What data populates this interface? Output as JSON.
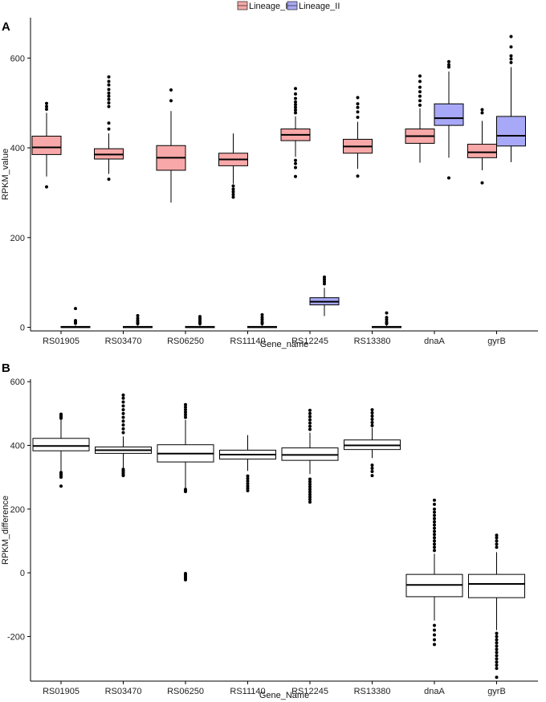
{
  "chart_data": [
    {
      "panel": "A",
      "type": "boxplot",
      "xlabel": "Gene_name",
      "ylabel": "RPKM_value",
      "ylim": [
        -8,
        690
      ],
      "yticks": [
        0,
        200,
        400,
        600
      ],
      "categories": [
        "RS01905",
        "RS03470",
        "RS06250",
        "RS11140",
        "RS12245",
        "RS13380",
        "dnaA",
        "gyrB"
      ],
      "legend": {
        "placement": "top",
        "entries": [
          {
            "name": "Lineage_I",
            "color": "#f8a8a8"
          },
          {
            "name": "Lineage_II",
            "color": "#a8a8f8"
          }
        ]
      },
      "boxes": [
        {
          "category": "RS01905",
          "group": "Lineage_I",
          "color": "#f8a8a8",
          "whisker_low": 336,
          "q1": 385,
          "median": 401,
          "q3": 426,
          "whisker_high": 478,
          "outliers": [
            313,
            486,
            492,
            499
          ]
        },
        {
          "category": "RS01905",
          "group": "Lineage_II",
          "color": "#a8a8f8",
          "whisker_low": 0,
          "q1": 0,
          "median": 1,
          "q3": 2,
          "whisker_high": 4,
          "outliers": [
            9,
            12,
            15,
            42
          ]
        },
        {
          "category": "RS03470",
          "group": "Lineage_I",
          "color": "#f8a8a8",
          "whisker_low": 342,
          "q1": 375,
          "median": 385,
          "q3": 398,
          "whisker_high": 432,
          "outliers": [
            330,
            442,
            455,
            492,
            500,
            508,
            515,
            522,
            530,
            540,
            548,
            558
          ]
        },
        {
          "category": "RS03470",
          "group": "Lineage_II",
          "color": "#a8a8f8",
          "whisker_low": 0,
          "q1": 0,
          "median": 1,
          "q3": 2,
          "whisker_high": 4,
          "outliers": [
            8,
            11,
            15,
            20,
            26
          ]
        },
        {
          "category": "RS06250",
          "group": "Lineage_I",
          "color": "#f8a8a8",
          "whisker_low": 278,
          "q1": 350,
          "median": 378,
          "q3": 405,
          "whisker_high": 482,
          "outliers": [
            505,
            529
          ]
        },
        {
          "category": "RS06250",
          "group": "Lineage_II",
          "color": "#a8a8f8",
          "whisker_low": 0,
          "q1": 0,
          "median": 1,
          "q3": 2,
          "whisker_high": 4,
          "outliers": [
            8,
            12,
            16,
            20,
            24
          ]
        },
        {
          "category": "RS11140",
          "group": "Lineage_I",
          "color": "#f8a8a8",
          "whisker_low": 320,
          "q1": 360,
          "median": 374,
          "q3": 388,
          "whisker_high": 432,
          "outliers": [
            290,
            296,
            302,
            308,
            315
          ]
        },
        {
          "category": "RS11140",
          "group": "Lineage_II",
          "color": "#a8a8f8",
          "whisker_low": 0,
          "q1": 0,
          "median": 1,
          "q3": 2,
          "whisker_high": 4,
          "outliers": [
            8,
            12,
            17,
            22,
            28
          ]
        },
        {
          "category": "RS12245",
          "group": "Lineage_I",
          "color": "#f8a8a8",
          "whisker_low": 380,
          "q1": 416,
          "median": 429,
          "q3": 442,
          "whisker_high": 470,
          "outliers": [
            336,
            356,
            365,
            372,
            478,
            484,
            490,
            496,
            502,
            510,
            520,
            532
          ]
        },
        {
          "category": "RS12245",
          "group": "Lineage_II",
          "color": "#a8a8f8",
          "whisker_low": 25,
          "q1": 50,
          "median": 57,
          "q3": 66,
          "whisker_high": 88,
          "outliers": [
            97,
            102,
            107,
            112
          ]
        },
        {
          "category": "RS13380",
          "group": "Lineage_I",
          "color": "#f8a8a8",
          "whisker_low": 353,
          "q1": 388,
          "median": 403,
          "q3": 419,
          "whisker_high": 458,
          "outliers": [
            337,
            468,
            480,
            490,
            498,
            512
          ]
        },
        {
          "category": "RS13380",
          "group": "Lineage_II",
          "color": "#a8a8f8",
          "whisker_low": 0,
          "q1": 0,
          "median": 1,
          "q3": 2,
          "whisker_high": 4,
          "outliers": [
            8,
            12,
            17,
            22,
            32
          ]
        },
        {
          "category": "dnaA",
          "group": "Lineage_I",
          "color": "#f8a8a8",
          "whisker_low": 367,
          "q1": 410,
          "median": 426,
          "q3": 442,
          "whisker_high": 488,
          "outliers": [
            495,
            505,
            515,
            525,
            535,
            548,
            560
          ]
        },
        {
          "category": "dnaA",
          "group": "Lineage_II",
          "color": "#a8a8f8",
          "whisker_low": 378,
          "q1": 450,
          "median": 466,
          "q3": 498,
          "whisker_high": 570,
          "outliers": [
            333,
            580,
            585,
            592
          ]
        },
        {
          "category": "gyrB",
          "group": "Lineage_I",
          "color": "#f8a8a8",
          "whisker_low": 350,
          "q1": 378,
          "median": 390,
          "q3": 408,
          "whisker_high": 460,
          "outliers": [
            322,
            478,
            485
          ]
        },
        {
          "category": "gyrB",
          "group": "Lineage_II",
          "color": "#a8a8f8",
          "whisker_low": 368,
          "q1": 404,
          "median": 427,
          "q3": 470,
          "whisker_high": 580,
          "outliers": [
            590,
            598,
            605,
            625,
            648
          ]
        }
      ]
    },
    {
      "panel": "B",
      "type": "boxplot",
      "xlabel": "Gene_Name",
      "ylabel": "RPKM_difference",
      "ylim": [
        -340,
        608
      ],
      "yticks": [
        -200,
        0,
        200,
        400,
        600
      ],
      "categories": [
        "RS01905",
        "RS03470",
        "RS06250",
        "RS11140",
        "RS12245",
        "RS13380",
        "dnaA",
        "gyrB"
      ],
      "boxes": [
        {
          "category": "RS01905",
          "color": "#ffffff",
          "whisker_low": 320,
          "q1": 383,
          "median": 398,
          "q3": 422,
          "whisker_high": 480,
          "outliers": [
            272,
            300,
            305,
            310,
            315,
            485,
            490,
            494,
            498
          ]
        },
        {
          "category": "RS03470",
          "color": "#ffffff",
          "whisker_low": 330,
          "q1": 375,
          "median": 385,
          "q3": 395,
          "whisker_high": 428,
          "outliers": [
            305,
            310,
            315,
            320,
            325,
            440,
            452,
            464,
            476,
            488,
            500,
            512,
            524,
            536,
            548,
            558
          ]
        },
        {
          "category": "RS06250",
          "color": "#ffffff",
          "whisker_low": 265,
          "q1": 348,
          "median": 374,
          "q3": 402,
          "whisker_high": 480,
          "outliers": [
            -22,
            -17,
            -12,
            -7,
            -2,
            255,
            258,
            262,
            488,
            496,
            504,
            512,
            520,
            528
          ]
        },
        {
          "category": "RS11140",
          "color": "#ffffff",
          "whisker_low": 320,
          "q1": 357,
          "median": 371,
          "q3": 385,
          "whisker_high": 432,
          "outliers": [
            258,
            265,
            272,
            280,
            288,
            296,
            304
          ]
        },
        {
          "category": "RS12245",
          "color": "#ffffff",
          "whisker_low": 310,
          "q1": 353,
          "median": 370,
          "q3": 392,
          "whisker_high": 440,
          "outliers": [
            222,
            230,
            238,
            246,
            254,
            262,
            270,
            278,
            286,
            294,
            450,
            460,
            470,
            480,
            490,
            500,
            510
          ]
        },
        {
          "category": "RS13380",
          "color": "#ffffff",
          "whisker_low": 360,
          "q1": 387,
          "median": 400,
          "q3": 417,
          "whisker_high": 455,
          "outliers": [
            305,
            318,
            328,
            338,
            462,
            472,
            482,
            492,
            502,
            512
          ]
        },
        {
          "category": "dnaA",
          "color": "#ffffff",
          "whisker_low": -150,
          "q1": -75,
          "median": -38,
          "q3": -5,
          "whisker_high": 60,
          "outliers": [
            -225,
            -210,
            -195,
            -180,
            -165,
            70,
            80,
            90,
            100,
            110,
            120,
            130,
            140,
            150,
            160,
            170,
            180,
            190,
            200,
            215,
            228
          ]
        },
        {
          "category": "gyrB",
          "color": "#ffffff",
          "whisker_low": -180,
          "q1": -78,
          "median": -35,
          "q3": -5,
          "whisker_high": 65,
          "outliers": [
            -328,
            -300,
            -290,
            -280,
            -270,
            -260,
            -250,
            -240,
            -230,
            -220,
            -210,
            -200,
            -190,
            80,
            90,
            100,
            110,
            118
          ]
        }
      ]
    }
  ]
}
